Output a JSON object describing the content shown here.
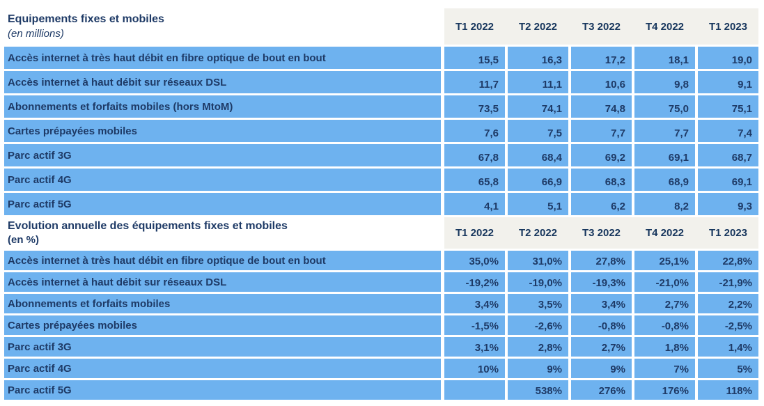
{
  "colors": {
    "cell_blue": "#6EB2EF",
    "header_band_gray": "#F2F1EC",
    "text_navy": "#1E3A66"
  },
  "chart_data": [
    {
      "type": "table",
      "title": "Equipements fixes et mobiles",
      "subtitle": "(en millions)",
      "columns": [
        "T1 2022",
        "T2 2022",
        "T3 2022",
        "T4 2022",
        "T1 2023"
      ],
      "rows": [
        {
          "label": "Accès internet à très haut débit en fibre optique de bout en bout",
          "values": [
            "15,5",
            "16,3",
            "17,2",
            "18,1",
            "19,0"
          ]
        },
        {
          "label": "Accès internet à haut débit sur réseaux DSL",
          "values": [
            "11,7",
            "11,1",
            "10,6",
            "9,8",
            "9,1"
          ]
        },
        {
          "label": "Abonnements et forfaits mobiles (hors MtoM)",
          "values": [
            "73,5",
            "74,1",
            "74,8",
            "75,0",
            "75,1"
          ]
        },
        {
          "label": "Cartes prépayées mobiles",
          "values": [
            "7,6",
            "7,5",
            "7,7",
            "7,7",
            "7,4"
          ]
        },
        {
          "label": "Parc actif 3G",
          "values": [
            "67,8",
            "68,4",
            "69,2",
            "69,1",
            "68,7"
          ]
        },
        {
          "label": "Parc actif 4G",
          "values": [
            "65,8",
            "66,9",
            "68,3",
            "68,9",
            "69,1"
          ]
        },
        {
          "label": "Parc actif 5G",
          "values": [
            "4,1",
            "5,1",
            "6,2",
            "8,2",
            "9,3"
          ]
        }
      ]
    },
    {
      "type": "table",
      "title": "Evolution annuelle des équipements fixes et mobiles",
      "subtitle": "(en %)",
      "columns": [
        "T1 2022",
        "T2 2022",
        "T3 2022",
        "T4 2022",
        "T1 2023"
      ],
      "rows": [
        {
          "label": "Accès internet à très haut débit en fibre optique de bout en bout",
          "values": [
            "35,0%",
            "31,0%",
            "27,8%",
            "25,1%",
            "22,8%"
          ]
        },
        {
          "label": "Accès internet à haut débit sur réseaux DSL",
          "values": [
            "-19,2%",
            "-19,0%",
            "-19,3%",
            "-21,0%",
            "-21,9%"
          ]
        },
        {
          "label": "Abonnements et forfaits mobiles",
          "values": [
            "3,4%",
            "3,5%",
            "3,4%",
            "2,7%",
            "2,2%"
          ]
        },
        {
          "label": "Cartes prépayées mobiles",
          "values": [
            "-1,5%",
            "-2,6%",
            "-0,8%",
            "-0,8%",
            "-2,5%"
          ]
        },
        {
          "label": "Parc actif 3G",
          "values": [
            "3,1%",
            "2,8%",
            "2,7%",
            "1,8%",
            "1,4%"
          ]
        },
        {
          "label": "Parc actif 4G",
          "values": [
            "10%",
            "9%",
            "9%",
            "7%",
            "5%"
          ]
        },
        {
          "label": "Parc actif 5G",
          "values": [
            "",
            "538%",
            "276%",
            "176%",
            "118%"
          ]
        }
      ]
    }
  ]
}
